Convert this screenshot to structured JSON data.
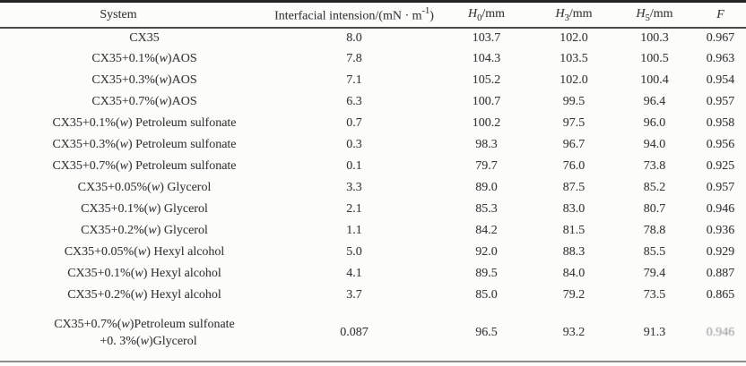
{
  "table": {
    "header": {
      "system": "System",
      "interfacial": {
        "pre": "Interfacial intension/(mN · m",
        "sup": "-1",
        "post": ")"
      },
      "h0": {
        "base": "H",
        "sub": "0",
        "unit": "/mm"
      },
      "h3": {
        "base": "H",
        "sub": "3",
        "unit": "/mm"
      },
      "h5": {
        "base": "H",
        "sub": "5",
        "unit": "/mm"
      },
      "f": "F"
    },
    "rows": [
      {
        "system": "CX35",
        "interfacial": "8.0",
        "h0": "103.7",
        "h3": "102.0",
        "h5": "100.3",
        "f": "0.967"
      },
      {
        "system": "CX35+0.1%(w)AOS",
        "interfacial": "7.8",
        "h0": "104.3",
        "h3": "103.5",
        "h5": "100.5",
        "f": "0.963"
      },
      {
        "system": "CX35+0.3%(w)AOS",
        "interfacial": "7.1",
        "h0": "105.2",
        "h3": "102.0",
        "h5": "100.4",
        "f": "0.954"
      },
      {
        "system": "CX35+0.7%(w)AOS",
        "interfacial": "6.3",
        "h0": "100.7",
        "h3": "99.5",
        "h5": "96.4",
        "f": "0.957"
      },
      {
        "system": "CX35+0.1%(w) Petroleum sulfonate",
        "interfacial": "0.7",
        "h0": "100.2",
        "h3": "97.5",
        "h5": "96.0",
        "f": "0.958"
      },
      {
        "system": "CX35+0.3%(w) Petroleum sulfonate",
        "interfacial": "0.3",
        "h0": "98.3",
        "h3": "96.7",
        "h5": "94.0",
        "f": "0.956"
      },
      {
        "system": "CX35+0.7%(w) Petroleum sulfonate",
        "interfacial": "0.1",
        "h0": "79.7",
        "h3": "76.0",
        "h5": "73.8",
        "f": "0.925"
      },
      {
        "system": "CX35+0.05%(w) Glycerol",
        "interfacial": "3.3",
        "h0": "89.0",
        "h3": "87.5",
        "h5": "85.2",
        "f": "0.957"
      },
      {
        "system": "CX35+0.1%(w) Glycerol",
        "interfacial": "2.1",
        "h0": "85.3",
        "h3": "83.0",
        "h5": "80.7",
        "f": "0.946"
      },
      {
        "system": "CX35+0.2%(w) Glycerol",
        "interfacial": "1.1",
        "h0": "84.2",
        "h3": "81.5",
        "h5": "78.8",
        "f": "0.936"
      },
      {
        "system": "CX35+0.05%(w) Hexyl alcohol",
        "interfacial": "5.0",
        "h0": "92.0",
        "h3": "88.3",
        "h5": "85.5",
        "f": "0.929"
      },
      {
        "system": "CX35+0.1%(w) Hexyl alcohol",
        "interfacial": "4.1",
        "h0": "89.5",
        "h3": "84.0",
        "h5": "79.4",
        "f": "0.887"
      },
      {
        "system": "CX35+0.2%(w) Hexyl alcohol",
        "interfacial": "3.7",
        "h0": "85.0",
        "h3": "79.2",
        "h5": "73.5",
        "f": "0.865"
      },
      {
        "system": [
          "CX35+0.7%(w)Petroleum sulfonate",
          "+0. 3%(w)Glycerol"
        ],
        "interfacial": "0.087",
        "h0": "96.5",
        "h3": "93.2",
        "h5": "91.3",
        "f": "0.946",
        "f_faded": true
      }
    ]
  },
  "colors": {
    "text": "#3a3a3a",
    "rule_top": "#242424",
    "rule_header": "#4a4a4a",
    "rule_bottom": "#8f8f8f",
    "background": "#fcfcfb"
  }
}
